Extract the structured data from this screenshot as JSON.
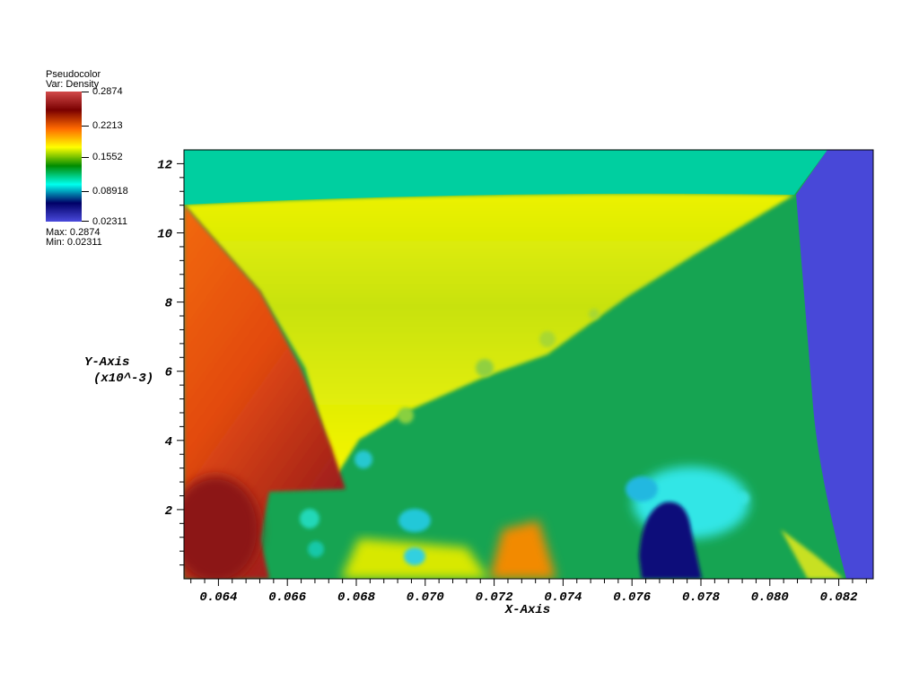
{
  "legend": {
    "plot_type": "Pseudocolor",
    "variable": "Var: Density",
    "max_label": "Max: 0.2874",
    "min_label": "Min: 0.02311",
    "ticks": [
      "0.2874",
      "0.2213",
      "0.1552",
      "0.08918",
      "0.02311"
    ],
    "colormap": [
      "#d24a4a",
      "#7a0000",
      "#ff6a00",
      "#ffff00",
      "#008c00",
      "#00ffee",
      "#000066",
      "#4a4adc"
    ]
  },
  "chart_data": {
    "type": "heatmap",
    "title": "",
    "xlabel": "X-Axis",
    "ylabel": "Y-Axis",
    "ylabel_scale": "(x10^-3)",
    "xlim": [
      0.063,
      0.083
    ],
    "ylim": [
      0,
      12.4
    ],
    "x_ticks": [
      "0.064",
      "0.066",
      "0.068",
      "0.070",
      "0.072",
      "0.074",
      "0.076",
      "0.078",
      "0.080",
      "0.082"
    ],
    "y_ticks": [
      "2",
      "4",
      "6",
      "8",
      "10",
      "12"
    ],
    "value_range": [
      0.02311,
      0.2874
    ],
    "variable": "Density"
  }
}
